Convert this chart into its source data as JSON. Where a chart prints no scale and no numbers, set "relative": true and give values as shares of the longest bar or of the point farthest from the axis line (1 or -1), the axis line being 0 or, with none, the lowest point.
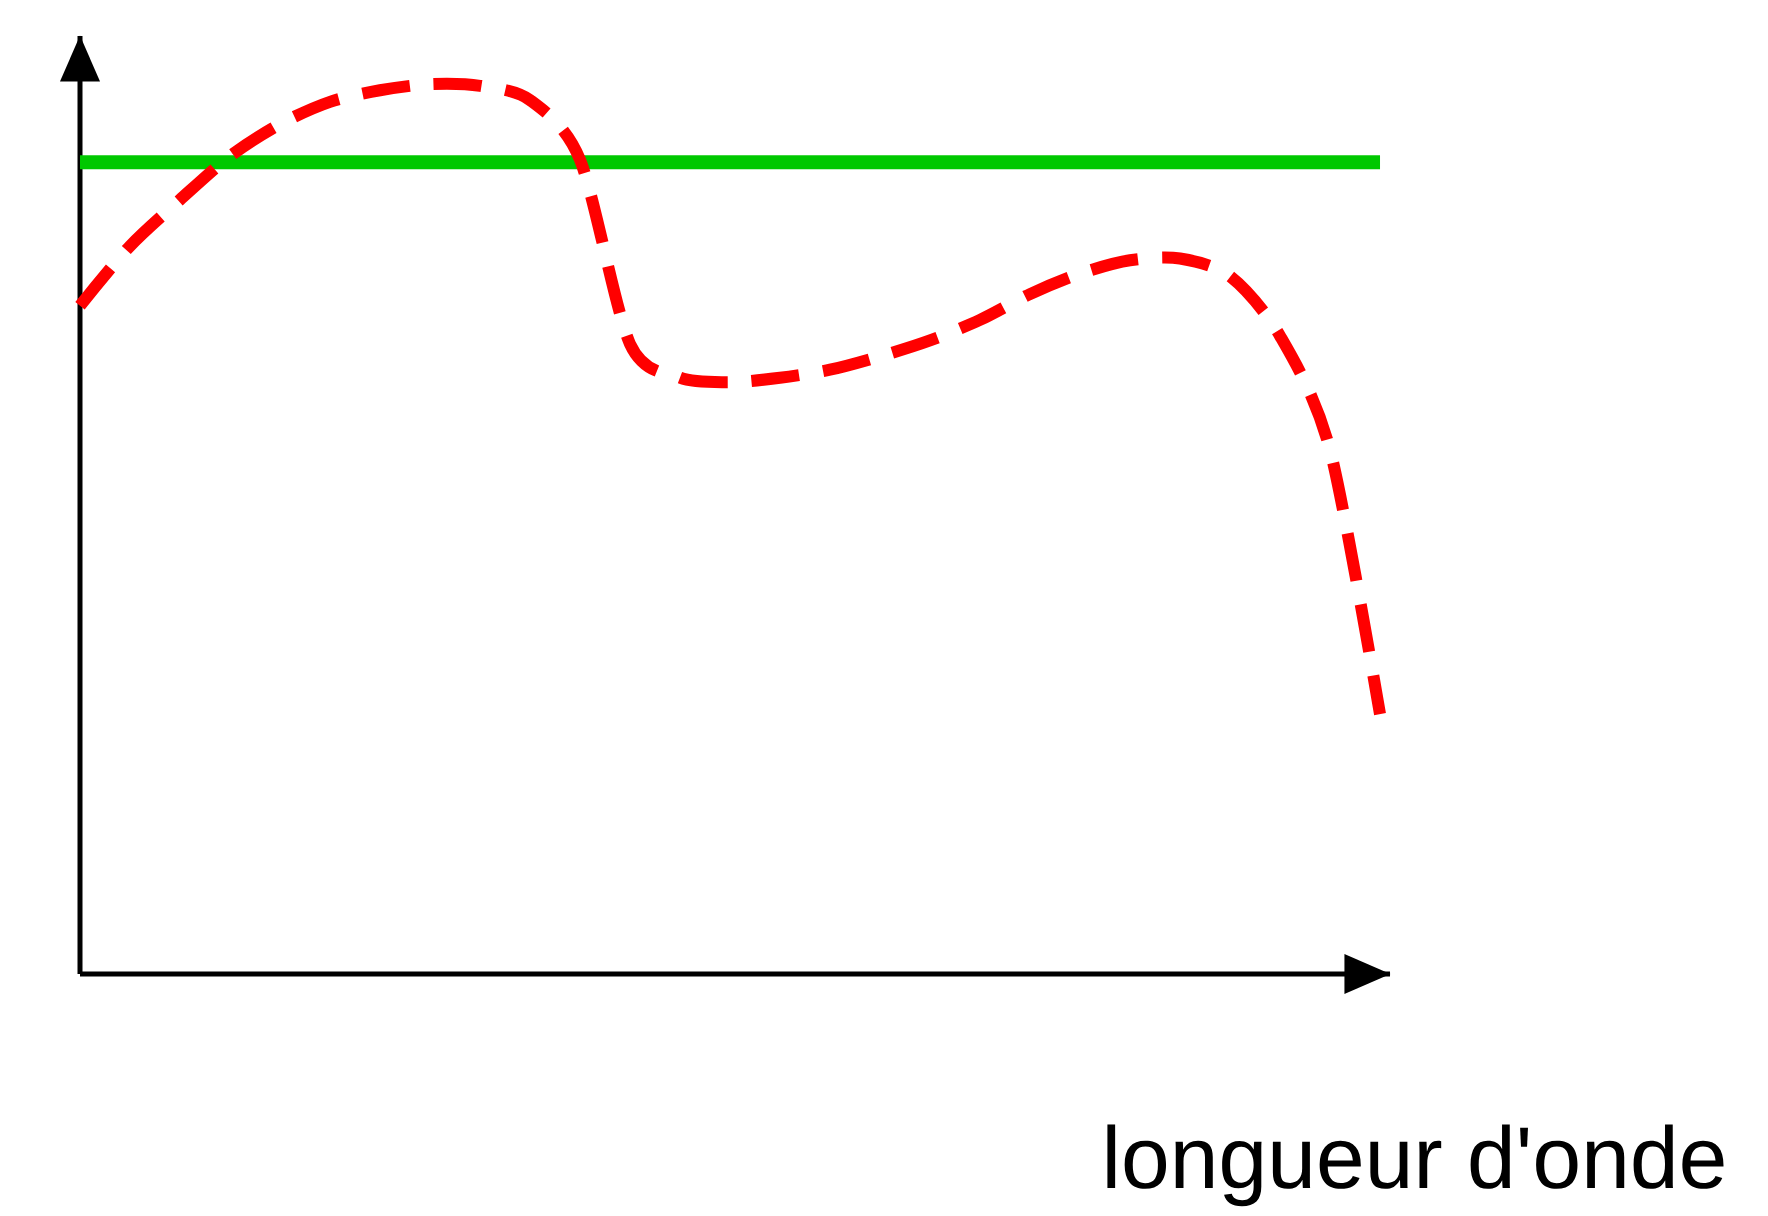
{
  "chart_data": {
    "type": "line",
    "relative": true,
    "xlabel": "longueur d'onde",
    "categories": [
      null,
      null,
      null,
      null,
      null,
      null,
      null,
      null,
      null,
      null,
      null,
      null,
      null,
      null,
      null,
      null,
      null,
      null,
      null,
      null,
      null,
      null,
      null,
      null,
      null,
      null,
      null
    ],
    "series": [
      {
        "color": "#00c800",
        "line_style": "solid",
        "values": [
          0.912,
          0.912,
          0.912,
          0.912,
          0.912,
          0.912,
          0.912,
          0.912,
          0.912,
          0.912,
          0.912,
          0.912,
          0.912,
          0.912,
          0.912,
          0.912,
          0.912,
          0.912,
          0.912,
          0.912,
          0.912,
          0.912,
          0.912,
          0.912,
          0.912,
          0.912,
          0.912
        ]
      },
      {
        "color": "#ff0000",
        "line_style": "dashed",
        "values": [
          0.751,
          0.818,
          0.87,
          0.919,
          0.955,
          0.98,
          0.993,
          1.0,
          0.998,
          0.982,
          0.915,
          0.708,
          0.67,
          0.665,
          0.67,
          0.679,
          0.694,
          0.712,
          0.735,
          0.764,
          0.787,
          0.802,
          0.804,
          0.784,
          0.717,
          0.589,
          0.292
        ]
      }
    ]
  }
}
